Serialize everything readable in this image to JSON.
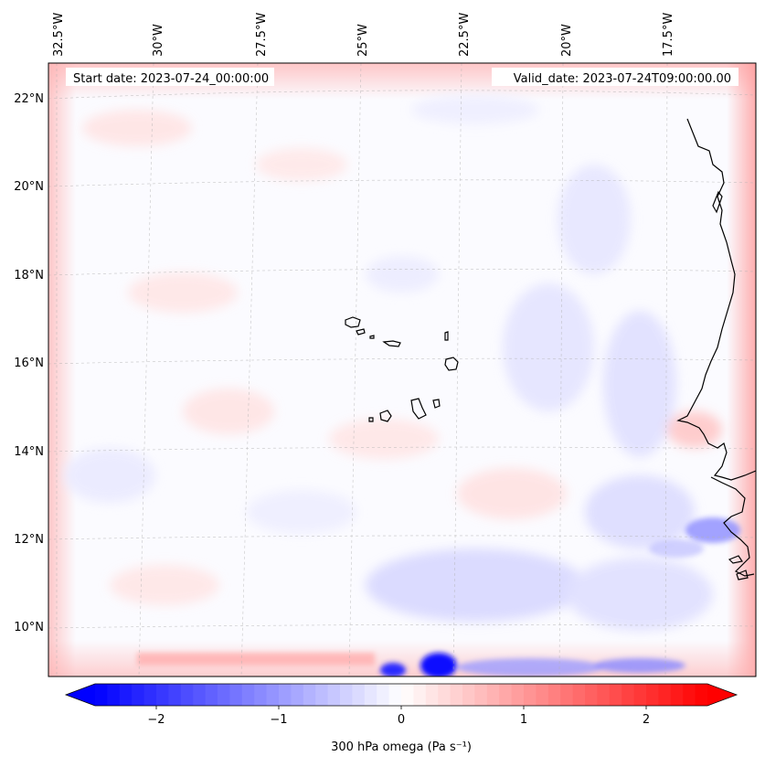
{
  "map": {
    "start_date": "Start date: 2023-07-24_00:00:00",
    "valid_date": "Valid_date: 2023-07-24T09:00:00.00",
    "lon_labels": [
      "32.5°W",
      "30°W",
      "27.5°W",
      "25°W",
      "22.5°W",
      "20°W",
      "17.5°W"
    ],
    "lat_labels": [
      "22°N",
      "20°N",
      "18°N",
      "16°N",
      "14°N",
      "12°N",
      "10°N"
    ],
    "field": "300 hPa omega",
    "colormap": "bwr",
    "colors": {
      "negative": "#0000ff",
      "zero": "#ffffff",
      "positive": "#ff0000"
    }
  },
  "colorbar": {
    "label": "300 hPa omega (Pa s⁻¹)",
    "ticks": [
      "−2",
      "−1",
      "0",
      "1",
      "2"
    ],
    "range": [
      -2.5,
      2.5
    ],
    "extend": "both"
  }
}
